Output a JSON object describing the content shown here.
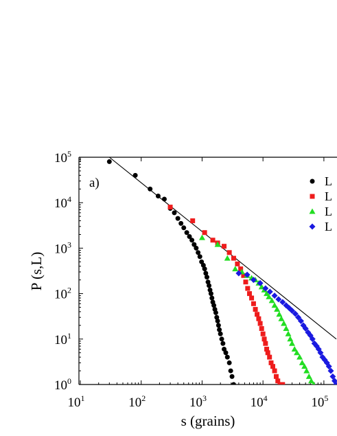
{
  "chart_data": {
    "type": "scatter",
    "title": "",
    "panel_label": "a)",
    "xlabel": "s (grains)",
    "ylabel": "P (s,L)",
    "xscale": "log",
    "yscale": "log",
    "xlim": [
      10,
      160000
    ],
    "ylim": [
      1,
      100000
    ],
    "x_ticks": [
      {
        "value": 10,
        "base": "10",
        "exp": "1"
      },
      {
        "value": 100,
        "base": "10",
        "exp": "2"
      },
      {
        "value": 1000,
        "base": "10",
        "exp": "3"
      },
      {
        "value": 10000,
        "base": "10",
        "exp": "4"
      },
      {
        "value": 100000,
        "base": "10",
        "exp": "5"
      }
    ],
    "y_ticks": [
      {
        "value": 1,
        "base": "10",
        "exp": "0"
      },
      {
        "value": 10,
        "base": "10",
        "exp": "1"
      },
      {
        "value": 100,
        "base": "10",
        "exp": "2"
      },
      {
        "value": 1000,
        "base": "10",
        "exp": "3"
      },
      {
        "value": 10000,
        "base": "10",
        "exp": "4"
      },
      {
        "value": 100000,
        "base": "10",
        "exp": "5"
      }
    ],
    "grid": false,
    "legend_position": "top-right",
    "fit_line": {
      "x": [
        30,
        160000
      ],
      "y": [
        100000,
        10
      ]
    },
    "series": [
      {
        "name": "L",
        "color": "#000000",
        "marker": "circle",
        "points": [
          [
            30,
            80000
          ],
          [
            80,
            40000
          ],
          [
            140,
            20000
          ],
          [
            190,
            14000
          ],
          [
            240,
            12000
          ],
          [
            300,
            7500
          ],
          [
            350,
            6000
          ],
          [
            400,
            4500
          ],
          [
            450,
            3500
          ],
          [
            500,
            2800
          ],
          [
            560,
            2200
          ],
          [
            620,
            1800
          ],
          [
            680,
            1500
          ],
          [
            740,
            1200
          ],
          [
            800,
            1000
          ],
          [
            860,
            800
          ],
          [
            920,
            650
          ],
          [
            980,
            500
          ],
          [
            1050,
            420
          ],
          [
            1100,
            350
          ],
          [
            1150,
            280
          ],
          [
            1200,
            230
          ],
          [
            1250,
            180
          ],
          [
            1300,
            150
          ],
          [
            1350,
            120
          ],
          [
            1400,
            100
          ],
          [
            1450,
            80
          ],
          [
            1500,
            65
          ],
          [
            1560,
            55
          ],
          [
            1620,
            45
          ],
          [
            1680,
            38
          ],
          [
            1740,
            30
          ],
          [
            1800,
            25
          ],
          [
            1860,
            20
          ],
          [
            1920,
            16
          ],
          [
            2000,
            13
          ],
          [
            2100,
            10
          ],
          [
            2200,
            8
          ],
          [
            2300,
            6
          ],
          [
            2450,
            5
          ],
          [
            2600,
            4
          ],
          [
            2800,
            3
          ],
          [
            2950,
            2
          ],
          [
            3100,
            1.5
          ],
          [
            3300,
            1
          ]
        ]
      },
      {
        "name": "L",
        "color": "#ee1c1c",
        "marker": "square",
        "points": [
          [
            300,
            8000
          ],
          [
            700,
            4000
          ],
          [
            1100,
            2200
          ],
          [
            1500,
            1500
          ],
          [
            1800,
            1300
          ],
          [
            2300,
            1100
          ],
          [
            2800,
            800
          ],
          [
            3300,
            600
          ],
          [
            3800,
            450
          ],
          [
            4300,
            350
          ],
          [
            4800,
            250
          ],
          [
            5200,
            180
          ],
          [
            5600,
            130
          ],
          [
            6000,
            100
          ],
          [
            6500,
            80
          ],
          [
            7000,
            60
          ],
          [
            7500,
            45
          ],
          [
            8000,
            35
          ],
          [
            8500,
            28
          ],
          [
            9000,
            22
          ],
          [
            9500,
            17
          ],
          [
            10000,
            13
          ],
          [
            10500,
            10
          ],
          [
            11000,
            8
          ],
          [
            11500,
            6
          ],
          [
            12000,
            5
          ],
          [
            12800,
            4
          ],
          [
            13600,
            3
          ],
          [
            14500,
            2.5
          ],
          [
            15500,
            2
          ],
          [
            16500,
            1.5
          ],
          [
            17500,
            1.2
          ],
          [
            19000,
            1
          ],
          [
            21000,
            1
          ]
        ]
      },
      {
        "name": "L",
        "color": "#22dd22",
        "marker": "triangle",
        "points": [
          [
            1000,
            1700
          ],
          [
            1800,
            1200
          ],
          [
            2600,
            600
          ],
          [
            3500,
            350
          ],
          [
            4500,
            300
          ],
          [
            5500,
            250
          ],
          [
            6500,
            220
          ],
          [
            7500,
            200
          ],
          [
            8500,
            170
          ],
          [
            9500,
            140
          ],
          [
            10500,
            120
          ],
          [
            11500,
            100
          ],
          [
            12500,
            85
          ],
          [
            14000,
            70
          ],
          [
            15500,
            55
          ],
          [
            17000,
            45
          ],
          [
            18500,
            35
          ],
          [
            20000,
            28
          ],
          [
            22000,
            22
          ],
          [
            24000,
            17
          ],
          [
            26000,
            13
          ],
          [
            28000,
            10
          ],
          [
            30000,
            8
          ],
          [
            33000,
            6
          ],
          [
            36000,
            5
          ],
          [
            40000,
            4
          ],
          [
            44000,
            3
          ],
          [
            48000,
            2.5
          ],
          [
            52000,
            2
          ],
          [
            57000,
            1.5
          ],
          [
            62000,
            1.2
          ],
          [
            68000,
            1
          ]
        ]
      },
      {
        "name": "L",
        "color": "#1a1ae0",
        "marker": "diamond",
        "points": [
          [
            4000,
            280
          ],
          [
            5500,
            260
          ],
          [
            7000,
            200
          ],
          [
            9000,
            170
          ],
          [
            11000,
            130
          ],
          [
            13000,
            110
          ],
          [
            15500,
            90
          ],
          [
            18000,
            75
          ],
          [
            21000,
            65
          ],
          [
            24000,
            55
          ],
          [
            27000,
            48
          ],
          [
            30000,
            42
          ],
          [
            34000,
            36
          ],
          [
            38000,
            30
          ],
          [
            42000,
            25
          ],
          [
            46000,
            20
          ],
          [
            50000,
            17
          ],
          [
            55000,
            14
          ],
          [
            60000,
            12
          ],
          [
            65000,
            10
          ],
          [
            70000,
            8
          ],
          [
            76000,
            7
          ],
          [
            82000,
            6
          ],
          [
            88000,
            5
          ],
          [
            95000,
            4
          ],
          [
            103000,
            3.5
          ],
          [
            112000,
            3
          ],
          [
            121000,
            2.5
          ],
          [
            130000,
            2
          ],
          [
            140000,
            1.5
          ],
          [
            150000,
            1.2
          ],
          [
            158000,
            1
          ]
        ]
      }
    ]
  }
}
